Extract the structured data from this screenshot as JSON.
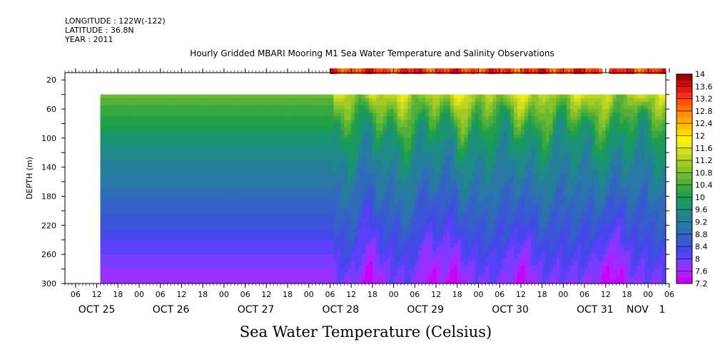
{
  "header": {
    "longitude": "LONGITUDE : 122W(-122)",
    "latitude": "LATITUDE : 36.8N",
    "year": "YEAR : 2011"
  },
  "chart_data": {
    "type": "heatmap",
    "title": "Hourly Gridded MBARI Mooring M1 Sea Water Temperature and Salinity Observations",
    "subtitle": "Sea Water Temperature (Celsius)",
    "ylabel": "DEPTH (m)",
    "xlabel": "",
    "y_inverted": true,
    "ylim": [
      300,
      10
    ],
    "y_ticks": [
      20,
      60,
      100,
      140,
      180,
      220,
      260,
      300
    ],
    "y_minor_step": 20,
    "x_range_hours": [
      0,
      170
    ],
    "x_start": "2011-10-25 03:00",
    "hour_tick_labels": [
      "06",
      "12",
      "18",
      "00",
      "06",
      "12",
      "18",
      "00",
      "06",
      "12",
      "18",
      "00",
      "06",
      "12",
      "18",
      "00",
      "06",
      "12",
      "18",
      "00",
      "06",
      "12",
      "18",
      "00",
      "06",
      "12",
      "18",
      "00",
      "06"
    ],
    "day_labels": [
      {
        "text": "OCT 25",
        "hour": 9
      },
      {
        "text": "OCT 26",
        "hour": 30
      },
      {
        "text": "OCT 27",
        "hour": 54
      },
      {
        "text": "OCT 28",
        "hour": 78
      },
      {
        "text": "OCT 29",
        "hour": 102
      },
      {
        "text": "OCT 30",
        "hour": 126
      },
      {
        "text": "OCT 31",
        "hour": 150
      },
      {
        "text": "NOV",
        "hour": 162
      },
      {
        "text": "1",
        "hour": 169
      }
    ],
    "colorbar": {
      "levels": [
        7.2,
        7.4,
        7.6,
        7.8,
        8.0,
        8.2,
        8.4,
        8.6,
        8.8,
        9.0,
        9.2,
        9.4,
        9.6,
        9.8,
        10.0,
        10.2,
        10.4,
        10.6,
        10.8,
        11.0,
        11.2,
        11.4,
        11.6,
        11.8,
        12.0,
        12.2,
        12.4,
        12.6,
        12.8,
        13.0,
        13.2,
        13.4,
        13.6,
        13.8,
        14.0
      ],
      "labels": [
        "7.2",
        "7.6",
        "8",
        "8.4",
        "8.8",
        "9.2",
        "9.6",
        "10",
        "10.4",
        "10.8",
        "11.2",
        "11.6",
        "12",
        "12.4",
        "12.8",
        "13.2",
        "13.6",
        "14"
      ],
      "colors": [
        "#c800ff",
        "#b020ff",
        "#9a30ff",
        "#7a3cff",
        "#5a40f8",
        "#4448e8",
        "#3a55d8",
        "#3560c8",
        "#2f6cb8",
        "#2a78a8",
        "#237f98",
        "#1f8a88",
        "#1a9470",
        "#1a9a58",
        "#22a048",
        "#3aa840",
        "#52b038",
        "#6cba30",
        "#86c42a",
        "#a2cc25",
        "#bcd620",
        "#d4e01c",
        "#ecec18",
        "#fff000",
        "#ffd800",
        "#ffc000",
        "#ffa800",
        "#ff9000",
        "#ff7000",
        "#ff5000",
        "#f83018",
        "#e01818",
        "#c80a0a",
        "#a00000"
      ]
    },
    "surface_series": {
      "depth_m": 10,
      "value_range": [
        12.6,
        13.8
      ],
      "segments_hours": [
        [
          75,
          152
        ],
        [
          154,
          170
        ]
      ]
    },
    "profile_series": {
      "start_hour": 10,
      "depth_range_m": [
        40,
        300
      ],
      "surface_temp_range": [
        10.6,
        11.9
      ],
      "bottom_temp_range": [
        7.2,
        8.2
      ],
      "cold_bottom_events_hours": [
        86,
        103,
        110,
        129,
        153,
        156
      ]
    }
  }
}
